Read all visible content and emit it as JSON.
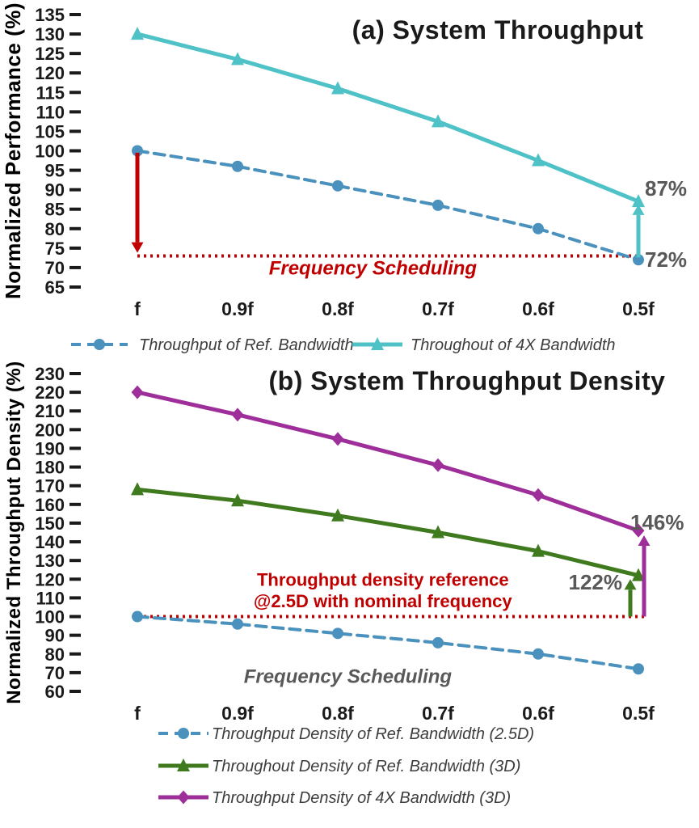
{
  "chart_data": [
    {
      "id": "a",
      "type": "line",
      "title": "(a) System Throughput",
      "ylabel": "Normalized Performance (%)",
      "xlabel": "",
      "categories": [
        "f",
        "0.9f",
        "0.8f",
        "0.7f",
        "0.6f",
        "0.5f"
      ],
      "ylim": [
        65,
        135
      ],
      "ytick_step": 5,
      "grid": false,
      "legend_position": "bottom",
      "series": [
        {
          "name": "Throughput of Ref. Bandwidth",
          "color": "#4a92bd",
          "marker": "circle",
          "dash": true,
          "values": [
            100,
            96,
            91,
            86,
            80,
            72
          ]
        },
        {
          "name": "Throughout of 4X Bandwidth",
          "color": "#4ec2c7",
          "marker": "triangle",
          "dash": false,
          "values": [
            130,
            123.5,
            116,
            107.5,
            97.5,
            87
          ]
        }
      ],
      "ref_line": {
        "y": 73,
        "x1": 0,
        "x2": 5,
        "color": "#c00000"
      },
      "arrows": [
        {
          "x": 0,
          "from": 99.5,
          "to": 73.8,
          "color": "#c00000",
          "width": 5
        },
        {
          "x": 5,
          "from": 72.6,
          "to": 86.2,
          "color": "#4ec2c7",
          "width": 5
        }
      ],
      "annotations": [
        {
          "text": "87%",
          "x": 5,
          "y": 88.5,
          "dx": 8,
          "anchor": "start",
          "color": "#595959",
          "size": 26
        },
        {
          "text": "72%",
          "x": 5,
          "y": 70.2,
          "dx": 8,
          "anchor": "start",
          "color": "#595959",
          "size": 26
        },
        {
          "text": "Frequency Scheduling",
          "x": 2.35,
          "y": 68.2,
          "anchor": "middle",
          "color": "#c00000",
          "size": 24,
          "italic": true
        }
      ]
    },
    {
      "id": "b",
      "type": "line",
      "title": "(b) System Throughput Density",
      "ylabel": "Normalized Throughput Density (%)",
      "xlabel": "",
      "categories": [
        "f",
        "0.9f",
        "0.8f",
        "0.7f",
        "0.6f",
        "0.5f"
      ],
      "ylim": [
        60,
        230
      ],
      "ytick_step": 10,
      "grid": false,
      "legend_position": "bottom",
      "series": [
        {
          "name": "Throughput Density of Ref. Bandwidth (2.5D)",
          "color": "#4a92bd",
          "marker": "circle",
          "dash": true,
          "values": [
            100,
            96,
            91,
            86,
            80,
            72
          ]
        },
        {
          "name": "Throughout Density of Ref. Bandwidth (3D)",
          "color": "#3f7a1e",
          "marker": "triangle",
          "dash": false,
          "values": [
            168,
            162,
            154,
            145,
            135,
            122
          ]
        },
        {
          "name": "Throughput Density of 4X Bandwidth (3D)",
          "color": "#9e2f9a",
          "marker": "diamond",
          "dash": false,
          "values": [
            220,
            208,
            195,
            181,
            165,
            146
          ]
        }
      ],
      "ref_line": {
        "y": 100,
        "x1": 0,
        "x2": 5,
        "x2dx": 12,
        "color": "#c00000"
      },
      "arrows": [
        {
          "x": 5,
          "dx": -10,
          "from": 100,
          "to": 120,
          "color": "#3f7a1e",
          "width": 5
        },
        {
          "x": 5,
          "dx": 7,
          "from": 100,
          "to": 143.5,
          "color": "#9e2f9a",
          "width": 5
        }
      ],
      "annotations": [
        {
          "text": "146%",
          "x": 5,
          "y": 146.5,
          "dx": -10,
          "anchor": "start",
          "color": "#595959",
          "size": 26
        },
        {
          "text": "122%",
          "x": 5,
          "y": 114.5,
          "dx": -20,
          "anchor": "end",
          "color": "#595959",
          "size": 26
        },
        {
          "text": "Throughput density reference",
          "x": 2.45,
          "y": 116.5,
          "anchor": "middle",
          "color": "#c00000",
          "size": 22
        },
        {
          "text": "@2.5D with nominal frequency",
          "x": 2.45,
          "y": 105,
          "anchor": "middle",
          "color": "#c00000",
          "size": 22
        },
        {
          "text": "Frequency Scheduling",
          "x": 2.1,
          "y": 64.5,
          "anchor": "middle",
          "color": "#595959",
          "size": 24,
          "italic": true
        }
      ]
    }
  ],
  "colors": {
    "ref_bandwidth_blue": "#4a92bd",
    "bandwidth_4x_teal": "#4ec2c7",
    "ref_3d_green": "#3f7a1e",
    "bandwidth_4x_3d_purple": "#9e2f9a",
    "reference_red": "#c00000",
    "annotation_gray": "#595959"
  }
}
